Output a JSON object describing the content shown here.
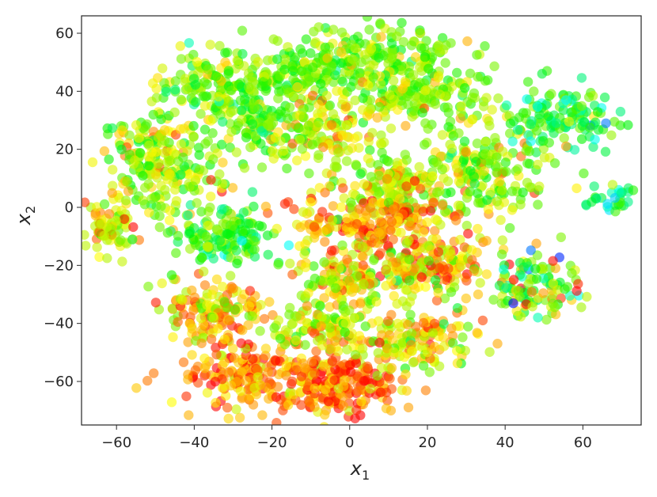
{
  "chart_data": {
    "type": "scatter",
    "title": "",
    "xlabel": "x",
    "xlabel_sub": "1",
    "ylabel": "x",
    "ylabel_sub": "2",
    "xlim": [
      -69,
      75
    ],
    "ylim": [
      -75,
      66
    ],
    "xticks": [
      -60,
      -40,
      -20,
      0,
      20,
      40,
      60
    ],
    "yticks": [
      -60,
      -40,
      -20,
      0,
      20,
      40,
      60
    ],
    "xtick_labels": [
      "−60",
      "−40",
      "−20",
      "0",
      "20",
      "40",
      "60"
    ],
    "ytick_labels": [
      "−60",
      "−40",
      "−20",
      "0",
      "20",
      "40",
      "60"
    ],
    "grid": false,
    "colormap": "gist_rainbow (red→yellow→green→cyan→blue)",
    "marker_alpha": 0.6,
    "colors": {
      "red": "#ff1a00",
      "orange": "#ff8c00",
      "yellow": "#f5e400",
      "lime": "#9cf000",
      "green": "#2ee85a",
      "cyan": "#23c8e8",
      "blue": "#2a3cf0"
    },
    "clusters": [
      {
        "cx": -62,
        "cy": -8,
        "rx": 7,
        "ry": 9,
        "n": 70,
        "c": [
          0.25,
          0.12
        ]
      },
      {
        "cx": -48,
        "cy": 15,
        "rx": 14,
        "ry": 15,
        "n": 240,
        "c": [
          0.33,
          0.12
        ]
      },
      {
        "cx": -35,
        "cy": 42,
        "rx": 12,
        "ry": 12,
        "n": 160,
        "c": [
          0.38,
          0.1
        ]
      },
      {
        "cx": -22,
        "cy": 28,
        "rx": 8,
        "ry": 10,
        "n": 90,
        "c": [
          0.42,
          0.1
        ]
      },
      {
        "cx": -30,
        "cy": -10,
        "rx": 12,
        "ry": 9,
        "n": 140,
        "c": [
          0.5,
          0.12
        ]
      },
      {
        "cx": -15,
        "cy": 45,
        "rx": 10,
        "ry": 7,
        "n": 80,
        "c": [
          0.38,
          0.1
        ]
      },
      {
        "cx": 5,
        "cy": 52,
        "rx": 25,
        "ry": 10,
        "n": 240,
        "c": [
          0.38,
          0.1
        ]
      },
      {
        "cx": 18,
        "cy": 38,
        "rx": 18,
        "ry": 9,
        "n": 150,
        "c": [
          0.36,
          0.1
        ]
      },
      {
        "cx": -5,
        "cy": 25,
        "rx": 12,
        "ry": 12,
        "n": 140,
        "c": [
          0.3,
          0.1
        ]
      },
      {
        "cx": 12,
        "cy": 8,
        "rx": 10,
        "ry": 8,
        "n": 110,
        "c": [
          0.3,
          0.1
        ]
      },
      {
        "cx": 35,
        "cy": 12,
        "rx": 15,
        "ry": 16,
        "n": 200,
        "c": [
          0.35,
          0.12
        ]
      },
      {
        "cx": 55,
        "cy": 30,
        "rx": 12,
        "ry": 10,
        "n": 130,
        "c": [
          0.5,
          0.14
        ]
      },
      {
        "cx": 68,
        "cy": 3,
        "rx": 7,
        "ry": 5,
        "n": 30,
        "c": [
          0.6,
          0.12
        ]
      },
      {
        "cx": 5,
        "cy": -5,
        "rx": 18,
        "ry": 10,
        "n": 220,
        "c": [
          0.18,
          0.12
        ]
      },
      {
        "cx": 20,
        "cy": -20,
        "rx": 15,
        "ry": 10,
        "n": 180,
        "c": [
          0.2,
          0.14
        ]
      },
      {
        "cx": 0,
        "cy": -25,
        "rx": 12,
        "ry": 8,
        "n": 120,
        "c": [
          0.3,
          0.14
        ]
      },
      {
        "cx": 48,
        "cy": -28,
        "rx": 10,
        "ry": 10,
        "n": 110,
        "c": [
          0.4,
          0.2
        ]
      },
      {
        "cx": -35,
        "cy": -35,
        "rx": 12,
        "ry": 10,
        "n": 140,
        "c": [
          0.22,
          0.12
        ]
      },
      {
        "cx": -22,
        "cy": -58,
        "rx": 20,
        "ry": 12,
        "n": 230,
        "c": [
          0.14,
          0.1
        ]
      },
      {
        "cx": -2,
        "cy": -62,
        "rx": 14,
        "ry": 10,
        "n": 170,
        "c": [
          0.12,
          0.1
        ]
      },
      {
        "cx": 15,
        "cy": -45,
        "rx": 16,
        "ry": 10,
        "n": 160,
        "c": [
          0.26,
          0.12
        ]
      },
      {
        "cx": -8,
        "cy": -42,
        "rx": 10,
        "ry": 7,
        "n": 90,
        "c": [
          0.3,
          0.12
        ]
      }
    ]
  }
}
